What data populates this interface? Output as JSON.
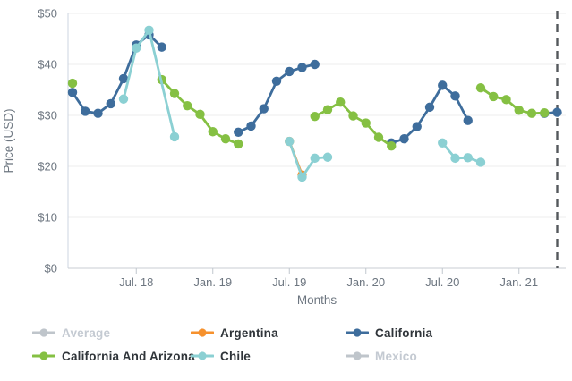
{
  "chart_data": {
    "type": "line",
    "title": "",
    "xlabel": "Months",
    "ylabel": "Price (USD)",
    "ylim": [
      0,
      50
    ],
    "grid": true,
    "legend_position": "bottom",
    "y_ticks": [
      {
        "value": 0,
        "label": "$0"
      },
      {
        "value": 10,
        "label": "$10"
      },
      {
        "value": 20,
        "label": "$20"
      },
      {
        "value": 30,
        "label": "$30"
      },
      {
        "value": 40,
        "label": "$40"
      },
      {
        "value": 50,
        "label": "$50"
      }
    ],
    "x_ticks": [
      {
        "m": 5,
        "label": "Jul. 18"
      },
      {
        "m": 11,
        "label": "Jan. 19"
      },
      {
        "m": 17,
        "label": "Jul. 19"
      },
      {
        "m": 23,
        "label": "Jan. 20"
      },
      {
        "m": 29,
        "label": "Jul. 20"
      },
      {
        "m": 35,
        "label": "Jan. 21"
      }
    ],
    "x_domain_months": [
      0,
      38.6
    ],
    "dashed_line_m": 38,
    "dashed_line_color": "#54585c",
    "series": [
      {
        "name": "Average",
        "color": "#bfc5cb",
        "active": false,
        "segments": []
      },
      {
        "name": "Mexico",
        "color": "#bfc5cb",
        "active": false,
        "segments": []
      },
      {
        "name": "Argentina",
        "color": "#f6912d",
        "active": true,
        "segments": [
          [
            [
              17,
              24.9
            ],
            [
              18,
              18.3
            ]
          ]
        ]
      },
      {
        "name": "California",
        "color": "#3e6d9c",
        "active": true,
        "segments": [
          [
            [
              0,
              34.5
            ],
            [
              1,
              30.8
            ],
            [
              2,
              30.4
            ],
            [
              3,
              32.3
            ],
            [
              4,
              37.2
            ],
            [
              5,
              43.8
            ],
            [
              6,
              45.8
            ],
            [
              7,
              43.4
            ]
          ],
          [
            [
              13,
              26.7
            ],
            [
              14,
              27.9
            ],
            [
              15,
              31.3
            ],
            [
              16,
              36.7
            ],
            [
              17,
              38.6
            ],
            [
              18,
              39.4
            ],
            [
              19,
              40.0
            ]
          ],
          [
            [
              25,
              24.6
            ],
            [
              26,
              25.4
            ],
            [
              27,
              27.8
            ],
            [
              28,
              31.6
            ],
            [
              29,
              35.9
            ],
            [
              30,
              33.8
            ],
            [
              31,
              29.0
            ]
          ],
          [
            [
              37,
              30.4
            ],
            [
              38,
              30.6
            ]
          ]
        ]
      },
      {
        "name": "California And Arizona",
        "color": "#85c043",
        "active": true,
        "segments": [
          [
            [
              0,
              36.3
            ]
          ],
          [
            [
              7,
              37.0
            ],
            [
              8,
              34.3
            ],
            [
              9,
              31.9
            ],
            [
              10,
              30.2
            ],
            [
              11,
              26.8
            ],
            [
              12,
              25.4
            ],
            [
              13,
              24.4
            ]
          ],
          [
            [
              19,
              29.8
            ],
            [
              20,
              31.1
            ],
            [
              21,
              32.6
            ],
            [
              22,
              29.9
            ],
            [
              23,
              28.5
            ],
            [
              24,
              25.7
            ],
            [
              25,
              24.0
            ]
          ],
          [
            [
              32,
              35.4
            ],
            [
              33,
              33.7
            ],
            [
              34,
              33.1
            ],
            [
              35,
              31.0
            ],
            [
              36,
              30.4
            ],
            [
              37,
              30.5
            ]
          ]
        ]
      },
      {
        "name": "Chile",
        "color": "#8bd0d3",
        "active": true,
        "segments": [
          [
            [
              4,
              33.2
            ],
            [
              5,
              43.2
            ],
            [
              6,
              46.7
            ],
            [
              8,
              25.8
            ]
          ],
          [
            [
              17,
              24.9
            ],
            [
              18,
              17.9
            ],
            [
              19,
              21.6
            ],
            [
              20,
              21.8
            ]
          ],
          [
            [
              29,
              24.6
            ],
            [
              30,
              21.6
            ],
            [
              31,
              21.7
            ],
            [
              32,
              20.8
            ]
          ]
        ]
      }
    ],
    "legend": {
      "items": [
        {
          "label": "Average",
          "color": "#bfc5cb",
          "active": false
        },
        {
          "label": "Argentina",
          "color": "#f6912d",
          "active": true
        },
        {
          "label": "California",
          "color": "#3e6d9c",
          "active": true
        },
        {
          "label": "California And Arizona",
          "color": "#85c043",
          "active": true
        },
        {
          "label": "Chile",
          "color": "#8bd0d3",
          "active": true
        },
        {
          "label": "Mexico",
          "color": "#bfc5cb",
          "active": false
        }
      ]
    },
    "axis_text_color": "#6d7680",
    "gridline_color": "#ececec",
    "axis_line_color": "#ccd5e0"
  }
}
